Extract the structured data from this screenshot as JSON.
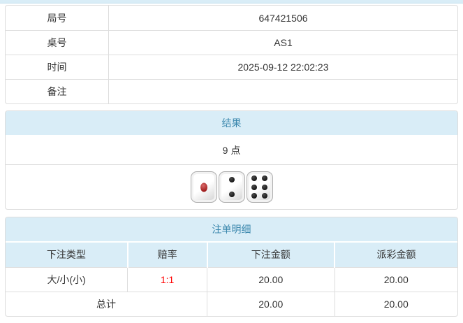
{
  "colors": {
    "header_bg": "#d9edf7",
    "header_text": "#3a87ad",
    "panel_border": "#dddddd",
    "row_border": "#dddddd",
    "text": "#333333",
    "odds_red": "#ff0000"
  },
  "info": {
    "rows": [
      {
        "label": "局号",
        "value": "647421506"
      },
      {
        "label": "桌号",
        "value": "AS1"
      },
      {
        "label": "时间",
        "value": "2025-09-12 22:02:23"
      },
      {
        "label": "备注",
        "value": ""
      }
    ]
  },
  "result": {
    "title": "结果",
    "points": "9 点",
    "dice": [
      1,
      2,
      6
    ]
  },
  "bets": {
    "title": "注单明细",
    "headers": [
      "下注类型",
      "赔率",
      "下注金额",
      "派彩金额"
    ],
    "rows": [
      {
        "type": "大/小(小)",
        "odds": "1:1",
        "bet": "20.00",
        "payout": "20.00"
      }
    ],
    "total": {
      "label": "总计",
      "bet": "20.00",
      "payout": "20.00"
    }
  }
}
